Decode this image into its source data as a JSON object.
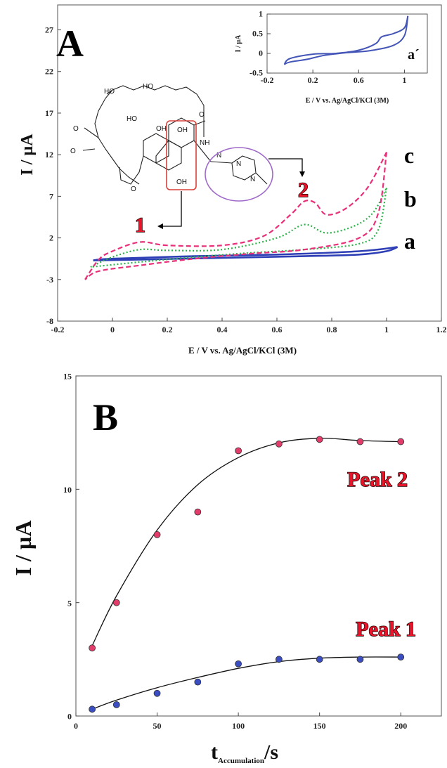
{
  "chart_data": [
    {
      "type": "line",
      "panel_label": "A",
      "xlabel": "E / V vs. Ag/AgCl/KCl (3M)",
      "ylabel": "I / µA",
      "xlim": [
        -0.2,
        1.2
      ],
      "ylim": [
        -8,
        30
      ],
      "x_ticks": [
        "-0.2",
        "0",
        "0.2",
        "0.4",
        "0.6",
        "0.8",
        "1",
        "1.2"
      ],
      "y_ticks": [
        "-8",
        "-3",
        "2",
        "7",
        "12",
        "17",
        "22",
        "27"
      ],
      "annotations": [
        "1",
        "2",
        "a",
        "b",
        "c"
      ],
      "colors": {
        "a": "#2e3fb5",
        "b": "#2bb34a",
        "c": "#e8307a",
        "box1": "#d9413b",
        "box2": "#a06ac9"
      },
      "series": [
        {
          "name": "a",
          "style": "solid",
          "forward": [
            [
              -0.07,
              -0.7
            ],
            [
              0.1,
              -0.6
            ],
            [
              0.4,
              -0.4
            ],
            [
              0.7,
              -0.2
            ],
            [
              0.9,
              0.0
            ],
            [
              1.0,
              0.4
            ],
            [
              1.04,
              0.9
            ]
          ],
          "reverse": [
            [
              1.04,
              0.9
            ],
            [
              0.9,
              0.4
            ],
            [
              0.6,
              0.0
            ],
            [
              0.3,
              -0.2
            ],
            [
              0.0,
              -0.5
            ],
            [
              -0.07,
              -0.7
            ]
          ]
        },
        {
          "name": "b",
          "style": "dotted",
          "forward": [
            [
              -0.08,
              -1.5
            ],
            [
              0.0,
              -0.3
            ],
            [
              0.1,
              0.6
            ],
            [
              0.2,
              0.5
            ],
            [
              0.4,
              0.6
            ],
            [
              0.6,
              2.0
            ],
            [
              0.7,
              3.6
            ],
            [
              0.78,
              2.6
            ],
            [
              0.88,
              3.4
            ],
            [
              0.95,
              5.0
            ],
            [
              1.0,
              8.0
            ]
          ],
          "reverse": [
            [
              1.0,
              8.0
            ],
            [
              0.97,
              3.0
            ],
            [
              0.9,
              1.3
            ],
            [
              0.7,
              0.6
            ],
            [
              0.5,
              0.2
            ],
            [
              0.3,
              -0.3
            ],
            [
              0.1,
              -0.9
            ],
            [
              -0.08,
              -1.5
            ]
          ]
        },
        {
          "name": "c",
          "style": "dashed",
          "forward": [
            [
              -0.1,
              -3.0
            ],
            [
              -0.05,
              -0.6
            ],
            [
              0.0,
              0.4
            ],
            [
              0.1,
              1.5
            ],
            [
              0.2,
              1.1
            ],
            [
              0.4,
              1.1
            ],
            [
              0.55,
              2.2
            ],
            [
              0.65,
              4.8
            ],
            [
              0.7,
              6.4
            ],
            [
              0.74,
              6.2
            ],
            [
              0.78,
              4.8
            ],
            [
              0.85,
              5.5
            ],
            [
              0.93,
              8.0
            ],
            [
              1.0,
              12.3
            ]
          ],
          "reverse": [
            [
              1.0,
              12.3
            ],
            [
              0.97,
              5.0
            ],
            [
              0.9,
              2.0
            ],
            [
              0.7,
              0.6
            ],
            [
              0.5,
              0.1
            ],
            [
              0.3,
              -0.5
            ],
            [
              0.1,
              -1.3
            ],
            [
              -0.05,
              -2.0
            ],
            [
              -0.1,
              -3.0
            ]
          ]
        }
      ]
    },
    {
      "type": "line",
      "panel_label": "inset",
      "xlabel": "E / V vs. Ag/AgCl/KCl (3M)",
      "ylabel": "I / µA",
      "xlim": [
        -0.2,
        1.2
      ],
      "ylim": [
        -0.5,
        1
      ],
      "x_ticks": [
        "-0.2",
        "0.2",
        "0.6",
        "1"
      ],
      "y_ticks": [
        "-0.5",
        "0",
        "0.5",
        "1"
      ],
      "annotations": [
        "a´"
      ],
      "series": [
        {
          "name": "a´",
          "forward": [
            [
              -0.05,
              -0.28
            ],
            [
              0.0,
              -0.13
            ],
            [
              0.2,
              -0.02
            ],
            [
              0.4,
              0.0
            ],
            [
              0.6,
              0.08
            ],
            [
              0.75,
              0.25
            ],
            [
              0.8,
              0.42
            ],
            [
              0.9,
              0.5
            ],
            [
              1.0,
              0.65
            ],
            [
              1.03,
              0.95
            ]
          ],
          "reverse": [
            [
              1.03,
              0.95
            ],
            [
              1.0,
              0.45
            ],
            [
              0.9,
              0.2
            ],
            [
              0.7,
              0.07
            ],
            [
              0.5,
              0.02
            ],
            [
              0.3,
              -0.05
            ],
            [
              0.15,
              -0.15
            ],
            [
              0.0,
              -0.22
            ],
            [
              -0.05,
              -0.28
            ]
          ]
        }
      ]
    },
    {
      "type": "scatter",
      "panel_label": "B",
      "xlabel": "t",
      "xlabel_sub": "Accumulation",
      "xlabel_unit": "/s",
      "ylabel": "I / µA",
      "xlim": [
        0,
        225
      ],
      "ylim": [
        0,
        15
      ],
      "x_ticks": [
        "0",
        "50",
        "100",
        "150",
        "200"
      ],
      "y_ticks": [
        "0",
        "5",
        "10",
        "15"
      ],
      "series": [
        {
          "name": "Peak 2",
          "color": "#e23c6b",
          "x": [
            10,
            25,
            50,
            75,
            100,
            125,
            150,
            175,
            200
          ],
          "y": [
            3.0,
            5.0,
            8.0,
            9.0,
            11.7,
            12.0,
            12.2,
            12.1,
            12.1
          ]
        },
        {
          "name": "Peak 1",
          "color": "#3a4ec2",
          "x": [
            10,
            25,
            50,
            75,
            100,
            125,
            150,
            175,
            200
          ],
          "y": [
            0.3,
            0.5,
            1.0,
            1.5,
            2.3,
            2.5,
            2.5,
            2.5,
            2.6
          ]
        }
      ],
      "fits": [
        {
          "name": "Peak 2",
          "x": [
            10,
            25,
            50,
            75,
            100,
            125,
            150,
            175,
            200
          ],
          "y": [
            3.1,
            5.3,
            8.2,
            10.2,
            11.4,
            12.05,
            12.25,
            12.15,
            12.1
          ]
        },
        {
          "name": "Peak 1",
          "x": [
            10,
            25,
            50,
            75,
            100,
            125,
            150,
            175,
            200
          ],
          "y": [
            0.3,
            0.7,
            1.25,
            1.7,
            2.1,
            2.4,
            2.55,
            2.6,
            2.6
          ]
        }
      ]
    }
  ]
}
